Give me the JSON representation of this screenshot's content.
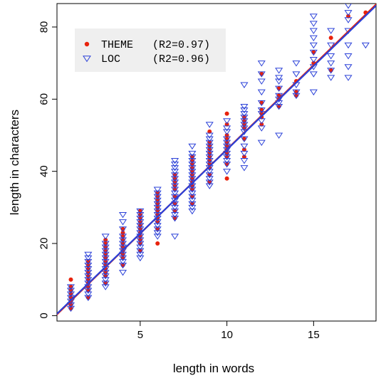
{
  "chart_data": {
    "type": "scatter",
    "title": "",
    "xlabel": "length in words",
    "ylabel": "length in characters",
    "xlim": [
      0.2,
      18.6
    ],
    "ylim": [
      -1.5,
      86.5
    ],
    "x_ticks": [
      5,
      10,
      15
    ],
    "y_ticks": [
      0,
      20,
      40,
      60,
      80
    ],
    "grid": false,
    "legend": {
      "position": "top-left",
      "background": "#efefef",
      "entries": [
        {
          "label": "THEME",
          "r2": "(R2=0.97)",
          "marker": "filled-circle",
          "color": "#e8220c"
        },
        {
          "label": "LOC",
          "r2": "(R2=0.96)",
          "marker": "open-triangle-down",
          "color": "#2a40d8"
        }
      ]
    },
    "series": [
      {
        "name": "THEME",
        "marker": "filled-circle",
        "color": "#e8220c",
        "fit": {
          "slope": 4.67,
          "intercept": -0.6,
          "color": "#e8220c"
        },
        "points": [
          [
            1,
            2
          ],
          [
            1,
            3
          ],
          [
            1,
            4
          ],
          [
            1,
            5
          ],
          [
            1,
            6
          ],
          [
            1,
            7
          ],
          [
            1,
            8
          ],
          [
            1,
            10
          ],
          [
            2,
            5
          ],
          [
            2,
            7
          ],
          [
            2,
            8
          ],
          [
            2,
            9
          ],
          [
            2,
            10
          ],
          [
            2,
            11
          ],
          [
            2,
            12
          ],
          [
            2,
            13
          ],
          [
            2,
            14
          ],
          [
            2,
            15
          ],
          [
            3,
            9
          ],
          [
            3,
            11
          ],
          [
            3,
            12
          ],
          [
            3,
            13
          ],
          [
            3,
            14
          ],
          [
            3,
            15
          ],
          [
            3,
            16
          ],
          [
            3,
            17
          ],
          [
            3,
            18
          ],
          [
            3,
            19
          ],
          [
            3,
            20
          ],
          [
            3,
            21
          ],
          [
            4,
            14
          ],
          [
            4,
            16
          ],
          [
            4,
            17
          ],
          [
            4,
            18
          ],
          [
            4,
            19
          ],
          [
            4,
            20
          ],
          [
            4,
            21
          ],
          [
            4,
            22
          ],
          [
            4,
            23
          ],
          [
            4,
            24
          ],
          [
            5,
            18
          ],
          [
            5,
            20
          ],
          [
            5,
            21
          ],
          [
            5,
            22
          ],
          [
            5,
            23
          ],
          [
            5,
            24
          ],
          [
            5,
            25
          ],
          [
            5,
            26
          ],
          [
            5,
            27
          ],
          [
            5,
            28
          ],
          [
            5,
            29
          ],
          [
            6,
            20
          ],
          [
            6,
            24
          ],
          [
            6,
            26
          ],
          [
            6,
            27
          ],
          [
            6,
            28
          ],
          [
            6,
            29
          ],
          [
            6,
            30
          ],
          [
            6,
            31
          ],
          [
            6,
            32
          ],
          [
            6,
            33
          ],
          [
            6,
            34
          ],
          [
            7,
            27
          ],
          [
            7,
            29
          ],
          [
            7,
            31
          ],
          [
            7,
            33
          ],
          [
            7,
            35
          ],
          [
            7,
            36
          ],
          [
            7,
            37
          ],
          [
            7,
            38
          ],
          [
            7,
            39
          ],
          [
            8,
            31
          ],
          [
            8,
            33
          ],
          [
            8,
            35
          ],
          [
            8,
            36
          ],
          [
            8,
            37
          ],
          [
            8,
            38
          ],
          [
            8,
            39
          ],
          [
            8,
            40
          ],
          [
            8,
            41
          ],
          [
            8,
            42
          ],
          [
            8,
            43
          ],
          [
            8,
            44
          ],
          [
            9,
            37
          ],
          [
            9,
            39
          ],
          [
            9,
            41
          ],
          [
            9,
            42
          ],
          [
            9,
            43
          ],
          [
            9,
            44
          ],
          [
            9,
            45
          ],
          [
            9,
            46
          ],
          [
            9,
            47
          ],
          [
            9,
            48
          ],
          [
            9,
            51
          ],
          [
            10,
            38
          ],
          [
            10,
            42
          ],
          [
            10,
            44
          ],
          [
            10,
            45
          ],
          [
            10,
            46
          ],
          [
            10,
            47
          ],
          [
            10,
            48
          ],
          [
            10,
            49
          ],
          [
            10,
            50
          ],
          [
            10,
            53
          ],
          [
            10,
            56
          ],
          [
            11,
            44
          ],
          [
            11,
            46
          ],
          [
            11,
            49
          ],
          [
            11,
            52
          ],
          [
            11,
            53
          ],
          [
            11,
            54
          ],
          [
            11,
            55
          ],
          [
            12,
            53
          ],
          [
            12,
            55
          ],
          [
            12,
            56
          ],
          [
            12,
            57
          ],
          [
            12,
            59
          ],
          [
            12,
            67
          ],
          [
            13,
            58
          ],
          [
            13,
            60
          ],
          [
            13,
            61
          ],
          [
            13,
            63
          ],
          [
            14,
            61
          ],
          [
            14,
            62
          ],
          [
            14,
            65
          ],
          [
            15,
            70
          ],
          [
            15,
            73
          ],
          [
            16,
            68
          ],
          [
            16,
            77
          ],
          [
            17,
            83
          ],
          [
            18,
            84
          ]
        ]
      },
      {
        "name": "LOC",
        "marker": "open-triangle-down",
        "color": "#2a40d8",
        "fit": {
          "slope": 4.64,
          "intercept": -0.4,
          "color": "#2a40d8"
        },
        "points": [
          [
            1,
            2
          ],
          [
            1,
            3
          ],
          [
            1,
            4
          ],
          [
            1,
            5
          ],
          [
            1,
            6
          ],
          [
            1,
            7
          ],
          [
            1,
            8
          ],
          [
            2,
            5
          ],
          [
            2,
            6
          ],
          [
            2,
            7
          ],
          [
            2,
            8
          ],
          [
            2,
            9
          ],
          [
            2,
            10
          ],
          [
            2,
            11
          ],
          [
            2,
            12
          ],
          [
            2,
            13
          ],
          [
            2,
            14
          ],
          [
            2,
            15
          ],
          [
            2,
            16
          ],
          [
            2,
            17
          ],
          [
            3,
            8
          ],
          [
            3,
            9
          ],
          [
            3,
            10
          ],
          [
            3,
            11
          ],
          [
            3,
            12
          ],
          [
            3,
            13
          ],
          [
            3,
            14
          ],
          [
            3,
            15
          ],
          [
            3,
            16
          ],
          [
            3,
            17
          ],
          [
            3,
            18
          ],
          [
            3,
            19
          ],
          [
            3,
            20
          ],
          [
            3,
            22
          ],
          [
            4,
            12
          ],
          [
            4,
            14
          ],
          [
            4,
            15
          ],
          [
            4,
            16
          ],
          [
            4,
            17
          ],
          [
            4,
            18
          ],
          [
            4,
            19
          ],
          [
            4,
            20
          ],
          [
            4,
            21
          ],
          [
            4,
            22
          ],
          [
            4,
            24
          ],
          [
            4,
            26
          ],
          [
            4,
            28
          ],
          [
            5,
            16
          ],
          [
            5,
            17
          ],
          [
            5,
            18
          ],
          [
            5,
            19
          ],
          [
            5,
            20
          ],
          [
            5,
            21
          ],
          [
            5,
            22
          ],
          [
            5,
            23
          ],
          [
            5,
            24
          ],
          [
            5,
            25
          ],
          [
            5,
            26
          ],
          [
            5,
            27
          ],
          [
            5,
            28
          ],
          [
            5,
            29
          ],
          [
            6,
            22
          ],
          [
            6,
            23
          ],
          [
            6,
            24
          ],
          [
            6,
            25
          ],
          [
            6,
            26
          ],
          [
            6,
            27
          ],
          [
            6,
            28
          ],
          [
            6,
            29
          ],
          [
            6,
            30
          ],
          [
            6,
            31
          ],
          [
            6,
            32
          ],
          [
            6,
            33
          ],
          [
            6,
            34
          ],
          [
            6,
            35
          ],
          [
            7,
            22
          ],
          [
            7,
            27
          ],
          [
            7,
            28
          ],
          [
            7,
            29
          ],
          [
            7,
            30
          ],
          [
            7,
            31
          ],
          [
            7,
            32
          ],
          [
            7,
            33
          ],
          [
            7,
            34
          ],
          [
            7,
            35
          ],
          [
            7,
            36
          ],
          [
            7,
            37
          ],
          [
            7,
            38
          ],
          [
            7,
            39
          ],
          [
            7,
            40
          ],
          [
            7,
            41
          ],
          [
            7,
            42
          ],
          [
            7,
            43
          ],
          [
            8,
            29
          ],
          [
            8,
            30
          ],
          [
            8,
            31
          ],
          [
            8,
            32
          ],
          [
            8,
            33
          ],
          [
            8,
            34
          ],
          [
            8,
            35
          ],
          [
            8,
            36
          ],
          [
            8,
            37
          ],
          [
            8,
            38
          ],
          [
            8,
            39
          ],
          [
            8,
            40
          ],
          [
            8,
            41
          ],
          [
            8,
            42
          ],
          [
            8,
            43
          ],
          [
            8,
            44
          ],
          [
            8,
            45
          ],
          [
            8,
            47
          ],
          [
            9,
            36
          ],
          [
            9,
            37
          ],
          [
            9,
            38
          ],
          [
            9,
            39
          ],
          [
            9,
            40
          ],
          [
            9,
            41
          ],
          [
            9,
            42
          ],
          [
            9,
            43
          ],
          [
            9,
            44
          ],
          [
            9,
            45
          ],
          [
            9,
            46
          ],
          [
            9,
            47
          ],
          [
            9,
            48
          ],
          [
            9,
            49
          ],
          [
            9,
            50
          ],
          [
            9,
            53
          ],
          [
            10,
            40
          ],
          [
            10,
            42
          ],
          [
            10,
            43
          ],
          [
            10,
            44
          ],
          [
            10,
            45
          ],
          [
            10,
            46
          ],
          [
            10,
            47
          ],
          [
            10,
            48
          ],
          [
            10,
            49
          ],
          [
            10,
            51
          ],
          [
            10,
            52
          ],
          [
            10,
            54
          ],
          [
            11,
            41
          ],
          [
            11,
            43
          ],
          [
            11,
            45
          ],
          [
            11,
            47
          ],
          [
            11,
            49
          ],
          [
            11,
            51
          ],
          [
            11,
            52
          ],
          [
            11,
            53
          ],
          [
            11,
            54
          ],
          [
            11,
            55
          ],
          [
            11,
            56
          ],
          [
            11,
            57
          ],
          [
            11,
            58
          ],
          [
            11,
            64
          ],
          [
            12,
            48
          ],
          [
            12,
            52
          ],
          [
            12,
            54
          ],
          [
            12,
            56
          ],
          [
            12,
            57
          ],
          [
            12,
            59
          ],
          [
            12,
            62
          ],
          [
            12,
            65
          ],
          [
            12,
            67
          ],
          [
            12,
            70
          ],
          [
            13,
            50
          ],
          [
            13,
            58
          ],
          [
            13,
            59
          ],
          [
            13,
            60
          ],
          [
            13,
            61
          ],
          [
            13,
            63
          ],
          [
            13,
            65
          ],
          [
            13,
            66
          ],
          [
            13,
            68
          ],
          [
            14,
            61
          ],
          [
            14,
            62
          ],
          [
            14,
            64
          ],
          [
            14,
            67
          ],
          [
            14,
            70
          ],
          [
            15,
            62
          ],
          [
            15,
            67
          ],
          [
            15,
            69
          ],
          [
            15,
            71
          ],
          [
            15,
            73
          ],
          [
            15,
            75
          ],
          [
            15,
            77
          ],
          [
            15,
            79
          ],
          [
            15,
            81
          ],
          [
            15,
            83
          ],
          [
            16,
            66
          ],
          [
            16,
            68
          ],
          [
            16,
            70
          ],
          [
            16,
            72
          ],
          [
            16,
            75
          ],
          [
            16,
            79
          ],
          [
            17,
            66
          ],
          [
            17,
            69
          ],
          [
            17,
            72
          ],
          [
            17,
            75
          ],
          [
            17,
            79
          ],
          [
            17,
            82
          ],
          [
            17,
            84
          ],
          [
            17,
            86
          ],
          [
            18,
            75
          ]
        ]
      }
    ]
  }
}
